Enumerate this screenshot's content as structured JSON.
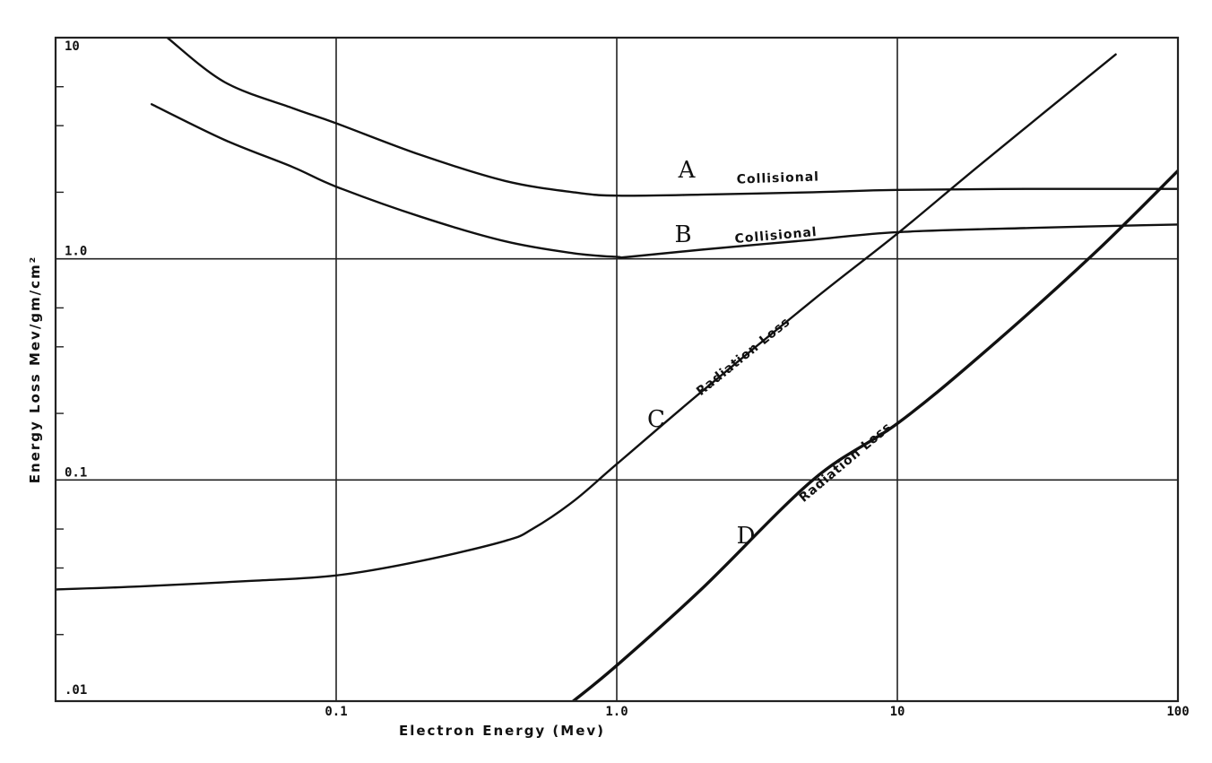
{
  "chart_data": {
    "type": "line",
    "title": "",
    "xlabel": "Electron Energy (Mev)",
    "ylabel": "Energy Loss Mev/gm/cm²",
    "xscale": "log",
    "yscale": "log",
    "xlim": [
      0.01,
      100
    ],
    "ylim": [
      0.01,
      10
    ],
    "x_tick_labels": [
      {
        "value": 0.1,
        "label": "0.1"
      },
      {
        "value": 1,
        "label": "1.0"
      },
      {
        "value": 10,
        "label": "10"
      },
      {
        "value": 100,
        "label": "100"
      }
    ],
    "y_tick_labels": [
      {
        "value": 0.01,
        "label": ".01"
      },
      {
        "value": 0.1,
        "label": "0.1"
      },
      {
        "value": 1,
        "label": "1.0"
      },
      {
        "value": 10,
        "label": "10"
      }
    ],
    "y_minor_ticks": [
      0.02,
      0.04,
      0.06,
      0.2,
      0.4,
      0.6,
      2,
      4,
      6
    ],
    "grid": true,
    "series": [
      {
        "letter": "A",
        "label": "Collisional",
        "x": [
          0.025,
          0.04,
          0.07,
          0.1,
          0.2,
          0.4,
          0.7,
          1.0,
          2,
          5,
          10,
          30,
          100
        ],
        "y": [
          10,
          6.3,
          4.8,
          4.1,
          2.95,
          2.25,
          2.0,
          1.93,
          1.95,
          2.0,
          2.05,
          2.07,
          2.07
        ]
      },
      {
        "letter": "B",
        "label": "Collisional",
        "x": [
          0.022,
          0.04,
          0.07,
          0.1,
          0.2,
          0.4,
          0.7,
          1.0,
          1.1,
          2,
          5,
          10,
          30,
          100
        ],
        "y": [
          5.0,
          3.45,
          2.6,
          2.12,
          1.55,
          1.2,
          1.06,
          1.02,
          1.02,
          1.1,
          1.22,
          1.32,
          1.38,
          1.43
        ]
      },
      {
        "letter": "C",
        "label": "Radiation Loss",
        "x": [
          0.01,
          0.02,
          0.05,
          0.1,
          0.2,
          0.4,
          0.5,
          0.7,
          1.0,
          2,
          5,
          10,
          20,
          60
        ],
        "y": [
          0.032,
          0.033,
          0.035,
          0.037,
          0.043,
          0.053,
          0.06,
          0.08,
          0.118,
          0.25,
          0.65,
          1.3,
          2.7,
          8.4
        ]
      },
      {
        "letter": "D",
        "label": "Radiation Loss",
        "x": [
          0.7,
          1.0,
          2,
          5,
          10,
          20,
          50,
          100
        ],
        "y": [
          0.01,
          0.0145,
          0.032,
          0.1,
          0.18,
          0.37,
          1.05,
          2.5
        ]
      }
    ],
    "annotations": [
      {
        "text": "A",
        "series": 0
      },
      {
        "text": "B",
        "series": 1
      },
      {
        "text": "C",
        "series": 2
      },
      {
        "text": "D",
        "series": 3
      }
    ]
  }
}
